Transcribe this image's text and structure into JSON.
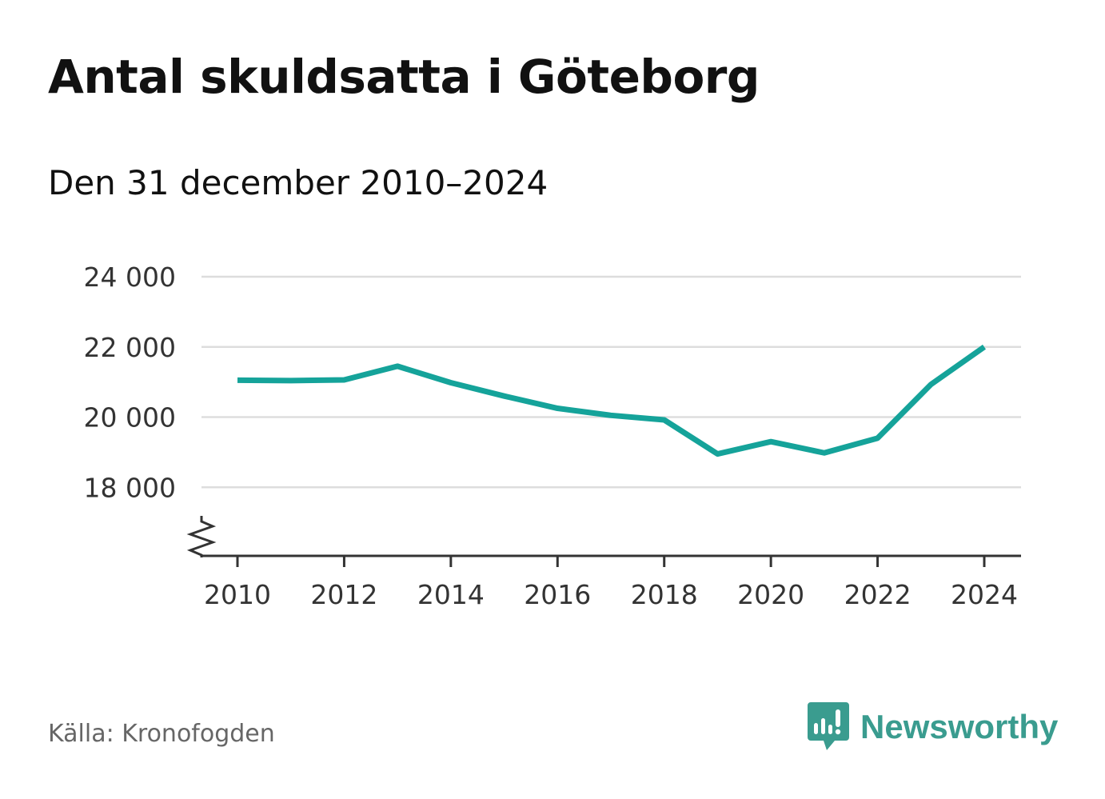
{
  "header": {
    "title": "Antal skuldsatta i Göteborg",
    "subtitle": "Den 31 december 2010–2024"
  },
  "footer": {
    "source": "Källa: Kronofogden",
    "brand": "Newsworthy",
    "brand_icon": "bar-chart-speech-bubble-icon",
    "brand_color": "#3a9c8f"
  },
  "chart_data": {
    "type": "line",
    "title": "Antal skuldsatta i Göteborg",
    "subtitle": "Den 31 december 2010–2024",
    "xlabel": "",
    "ylabel": "",
    "x": [
      2010,
      2011,
      2012,
      2013,
      2014,
      2015,
      2016,
      2017,
      2018,
      2019,
      2020,
      2021,
      2022,
      2023,
      2024
    ],
    "series": [
      {
        "name": "Antal skuldsatta",
        "color": "#15a39a",
        "values": [
          21050,
          21040,
          21060,
          21450,
          20980,
          20600,
          20250,
          20050,
          19920,
          18950,
          19300,
          18980,
          19400,
          20930,
          22000
        ]
      }
    ],
    "xticks": [
      2010,
      2012,
      2014,
      2016,
      2018,
      2020,
      2022,
      2024
    ],
    "xtick_labels": [
      "2010",
      "2012",
      "2014",
      "2016",
      "2018",
      "2020",
      "2022",
      "2024"
    ],
    "yticks": [
      18000,
      20000,
      22000,
      24000
    ],
    "ytick_labels": [
      "18 000",
      "20 000",
      "22 000",
      "24 000"
    ],
    "ylim": [
      16000,
      24000
    ],
    "y_axis_break": true,
    "grid": true,
    "gridline_color": "#dddddd",
    "axis_color": "#333333"
  }
}
